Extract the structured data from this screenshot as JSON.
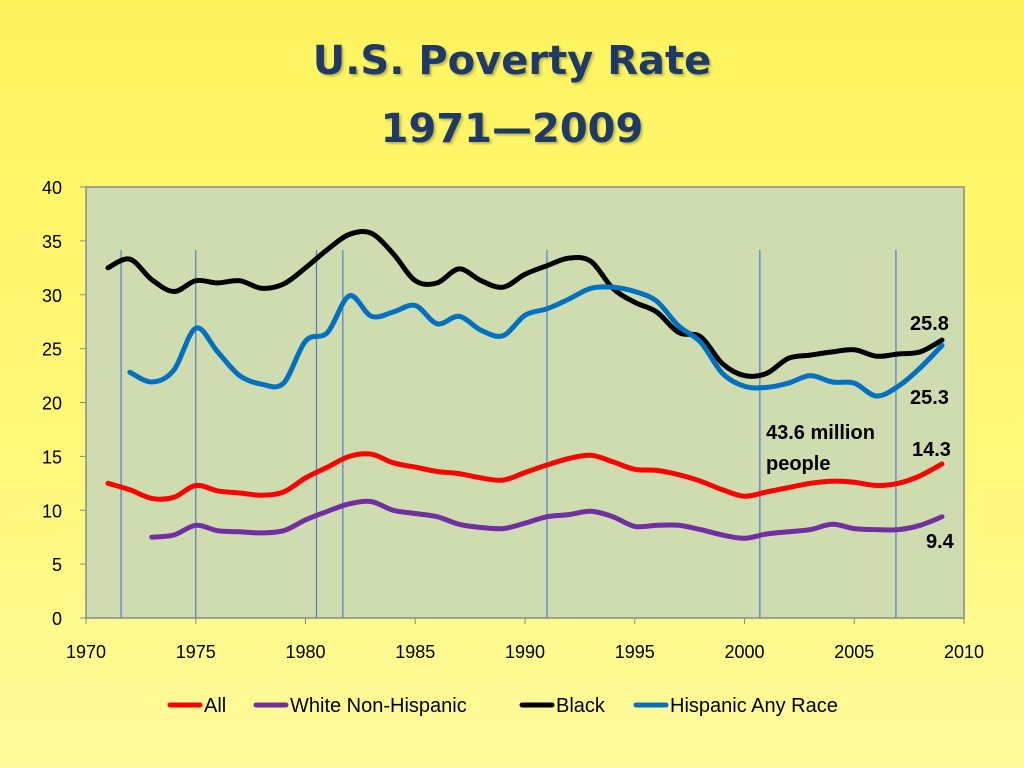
{
  "slide": {
    "title_line1": "U.S. Poverty Rate",
    "title_line2": "1971—2009"
  },
  "chart_data": {
    "type": "line",
    "title": "U.S. Poverty Rate 1971—2009",
    "xlabel": "",
    "ylabel": "",
    "xlim": [
      1970,
      2010
    ],
    "ylim": [
      0,
      40
    ],
    "x_ticks": [
      1970,
      1975,
      1980,
      1985,
      1990,
      1995,
      2000,
      2005,
      2010
    ],
    "y_ticks": [
      0,
      5,
      10,
      15,
      20,
      25,
      30,
      35,
      40
    ],
    "grid": false,
    "plot_background": "#cfdcb0",
    "legend": "bottom",
    "recession_markers": [
      1971.6,
      1975.0,
      1980.5,
      1981.7,
      1991.0,
      2000.7,
      2006.9
    ],
    "series": [
      {
        "name": "All",
        "color": "#ff0000",
        "x": [
          1971,
          1972,
          1973,
          1974,
          1975,
          1976,
          1977,
          1978,
          1979,
          1980,
          1981,
          1982,
          1983,
          1984,
          1985,
          1986,
          1987,
          1988,
          1989,
          1990,
          1991,
          1992,
          1993,
          1994,
          1995,
          1996,
          1997,
          1998,
          1999,
          2000,
          2001,
          2002,
          2003,
          2004,
          2005,
          2006,
          2007,
          2008,
          2009
        ],
        "values": [
          12.5,
          11.9,
          11.1,
          11.2,
          12.3,
          11.8,
          11.6,
          11.4,
          11.7,
          13.0,
          14.0,
          15.0,
          15.2,
          14.4,
          14.0,
          13.6,
          13.4,
          13.0,
          12.8,
          13.5,
          14.2,
          14.8,
          15.1,
          14.5,
          13.8,
          13.7,
          13.3,
          12.7,
          11.9,
          11.3,
          11.7,
          12.1,
          12.5,
          12.7,
          12.6,
          12.3,
          12.5,
          13.2,
          14.3
        ],
        "end_label": "14.3"
      },
      {
        "name": "White Non-Hispanic",
        "color": "#7030a0",
        "x": [
          1973,
          1974,
          1975,
          1976,
          1977,
          1978,
          1979,
          1980,
          1981,
          1982,
          1983,
          1984,
          1985,
          1986,
          1987,
          1988,
          1989,
          1990,
          1991,
          1992,
          1993,
          1994,
          1995,
          1996,
          1997,
          1998,
          1999,
          2000,
          2001,
          2002,
          2003,
          2004,
          2005,
          2006,
          2007,
          2008,
          2009
        ],
        "values": [
          7.5,
          7.7,
          8.6,
          8.1,
          8.0,
          7.9,
          8.1,
          9.1,
          9.9,
          10.6,
          10.8,
          10.0,
          9.7,
          9.4,
          8.7,
          8.4,
          8.3,
          8.8,
          9.4,
          9.6,
          9.9,
          9.4,
          8.5,
          8.6,
          8.6,
          8.2,
          7.7,
          7.4,
          7.8,
          8.0,
          8.2,
          8.7,
          8.3,
          8.2,
          8.2,
          8.6,
          9.4
        ],
        "end_label": "9.4"
      },
      {
        "name": "Black",
        "color": "#000000",
        "x": [
          1971,
          1972,
          1973,
          1974,
          1975,
          1976,
          1977,
          1978,
          1979,
          1980,
          1981,
          1982,
          1983,
          1984,
          1985,
          1986,
          1987,
          1988,
          1989,
          1990,
          1991,
          1992,
          1993,
          1994,
          1995,
          1996,
          1997,
          1998,
          1999,
          2000,
          2001,
          2002,
          2003,
          2004,
          2005,
          2006,
          2007,
          2008,
          2009
        ],
        "values": [
          32.5,
          33.3,
          31.4,
          30.3,
          31.3,
          31.1,
          31.3,
          30.6,
          31.0,
          32.5,
          34.2,
          35.6,
          35.7,
          33.8,
          31.3,
          31.1,
          32.4,
          31.3,
          30.7,
          31.9,
          32.7,
          33.4,
          33.1,
          30.6,
          29.3,
          28.4,
          26.5,
          26.1,
          23.6,
          22.5,
          22.7,
          24.1,
          24.4,
          24.7,
          24.9,
          24.3,
          24.5,
          24.7,
          25.8
        ],
        "end_label": "25.8"
      },
      {
        "name": "Hispanic Any Race",
        "color": "#0070c0",
        "x": [
          1972,
          1973,
          1974,
          1975,
          1976,
          1977,
          1978,
          1979,
          1980,
          1981,
          1982,
          1983,
          1984,
          1985,
          1986,
          1987,
          1988,
          1989,
          1990,
          1991,
          1992,
          1993,
          1994,
          1995,
          1996,
          1997,
          1998,
          1999,
          2000,
          2001,
          2002,
          2003,
          2004,
          2005,
          2006,
          2007,
          2008,
          2009
        ],
        "values": [
          22.8,
          21.9,
          23.0,
          26.9,
          24.7,
          22.5,
          21.7,
          21.8,
          25.7,
          26.5,
          29.9,
          28.0,
          28.4,
          29.0,
          27.3,
          28.0,
          26.7,
          26.2,
          28.1,
          28.7,
          29.6,
          30.6,
          30.7,
          30.3,
          29.4,
          27.1,
          25.6,
          22.7,
          21.5,
          21.4,
          21.8,
          22.5,
          21.9,
          21.8,
          20.6,
          21.5,
          23.2,
          25.3
        ],
        "end_label": "25.3"
      }
    ],
    "annotations": [
      {
        "line1": "43.6 million",
        "line2": "people"
      }
    ]
  }
}
